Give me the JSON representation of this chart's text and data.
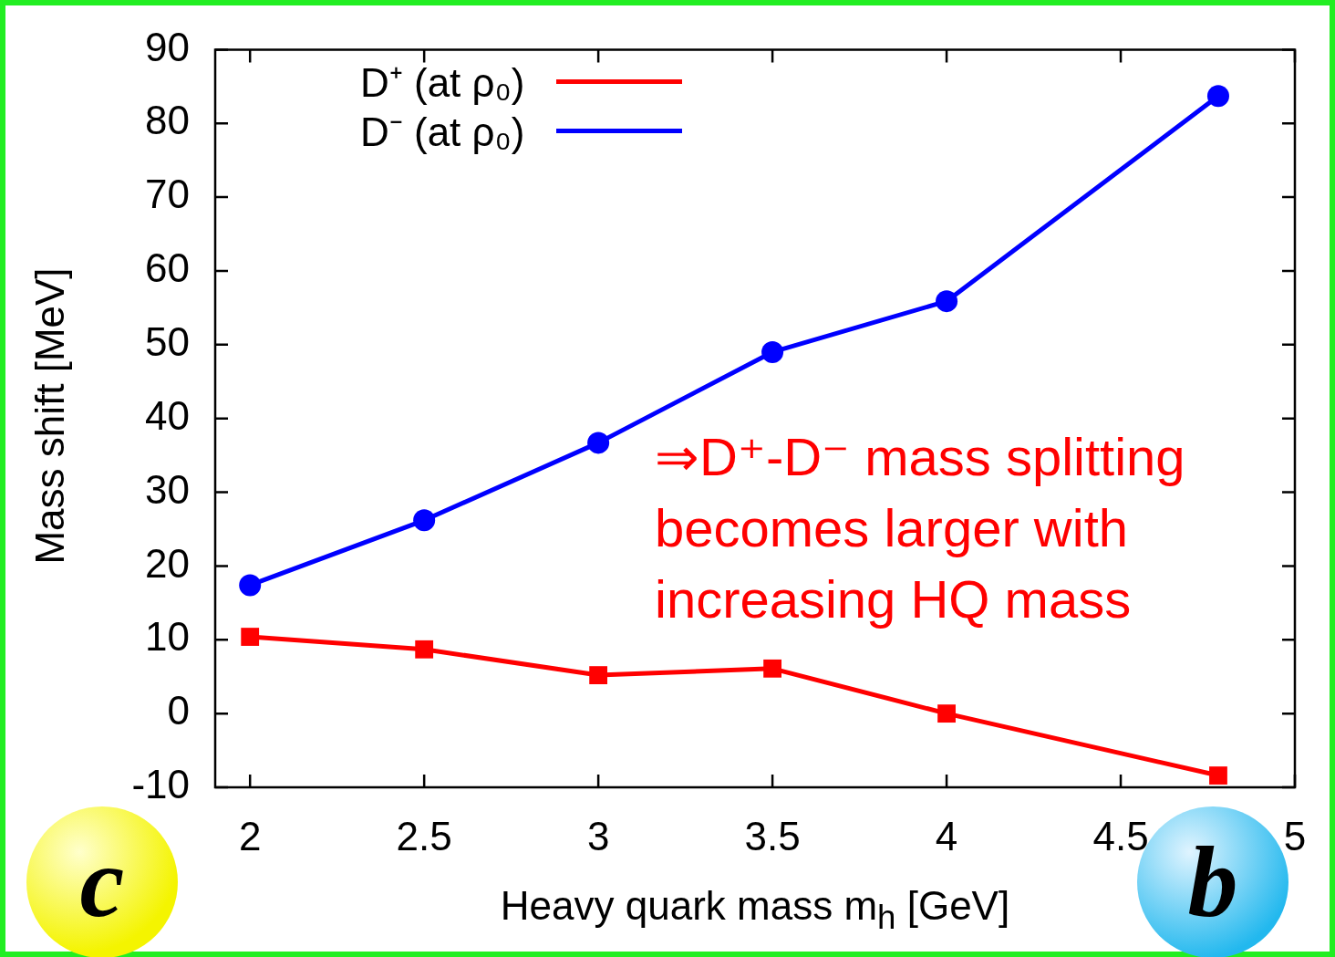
{
  "chart_data": {
    "type": "line",
    "xlabel": "Heavy quark mass m$_{h}$ [GeV]",
    "ylabel": "Mass shift [MeV]",
    "xlim": [
      1.9,
      5
    ],
    "xticks": [
      2,
      2.5,
      3,
      3.5,
      4,
      4.5,
      5
    ],
    "ylim": [
      -10,
      90
    ],
    "yticks": [
      -10,
      0,
      10,
      20,
      30,
      40,
      50,
      60,
      70,
      80,
      90
    ],
    "x": [
      2,
      2.5,
      3,
      3.5,
      4,
      4.78
    ],
    "series": [
      {
        "name": "D⁺ (at ρ₀)",
        "color": "#ff0000",
        "marker": "square",
        "values": [
          10.4,
          8.7,
          5.2,
          6.1,
          0,
          -8.4
        ]
      },
      {
        "name": "D⁻ (at ρ₀)",
        "color": "#0000ff",
        "marker": "circle",
        "values": [
          17.4,
          26.2,
          36.7,
          49.0,
          55.9,
          83.7
        ]
      }
    ],
    "legend": "top",
    "grid": false,
    "line_style": "solid",
    "annotations": [
      "⇒D⁺-D⁻ mass splitting becomes larger with increasing HQ mass",
      "c",
      "b"
    ]
  }
}
